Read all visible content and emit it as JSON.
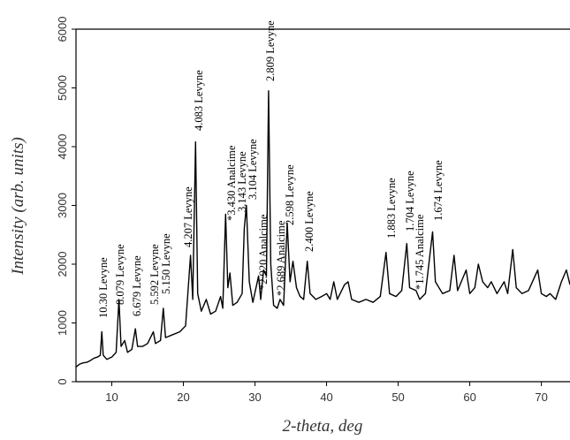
{
  "chart_data": {
    "type": "line",
    "xlabel": "2-theta, deg",
    "ylabel": "Intensity (arb. units)",
    "x": [
      5,
      5.5,
      6,
      6.5,
      7,
      7.5,
      8,
      8.4,
      8.6,
      8.8,
      9.3,
      10,
      10.6,
      11,
      11.3,
      11.8,
      12.2,
      12.8,
      13.3,
      13.6,
      14.3,
      15,
      15.8,
      16.1,
      16.8,
      17.2,
      17.5,
      18.5,
      19.5,
      20.3,
      21,
      21.3,
      21.7,
      22,
      22.5,
      23.2,
      23.8,
      24.5,
      25.2,
      25.5,
      25.9,
      26.2,
      26.5,
      26.9,
      27.5,
      28.2,
      28.5,
      28.8,
      29.2,
      29.7,
      30.5,
      30.8,
      31.2,
      31.6,
      31.9,
      32.2,
      32.6,
      33.1,
      33.5,
      34,
      34.5,
      34.9,
      35.3,
      35.8,
      36.3,
      36.8,
      37.3,
      37.7,
      38.5,
      39.3,
      40,
      40.5,
      41,
      41.5,
      42.5,
      43,
      43.5,
      44.5,
      45.5,
      46.5,
      47.5,
      48.3,
      48.8,
      49.7,
      50.5,
      51.2,
      51.6,
      52.5,
      53,
      53.8,
      54.8,
      55.2,
      56.2,
      57.2,
      57.8,
      58.3,
      59.5,
      60,
      60.7,
      61.2,
      61.8,
      62.5,
      63,
      63.8,
      64.8,
      65.3,
      66,
      66.5,
      67.3,
      68.2,
      69.5,
      70,
      70.7,
      71.2,
      72,
      72.8,
      73.5,
      74
    ],
    "values": [
      250,
      300,
      320,
      330,
      360,
      400,
      420,
      450,
      850,
      450,
      380,
      420,
      500,
      1400,
      600,
      700,
      500,
      550,
      900,
      600,
      600,
      650,
      850,
      650,
      700,
      1250,
      750,
      800,
      850,
      950,
      2150,
      1400,
      4080,
      1500,
      1200,
      1400,
      1150,
      1200,
      1450,
      1250,
      2850,
      1600,
      1850,
      1300,
      1350,
      1500,
      2600,
      3000,
      1700,
      1350,
      1800,
      1400,
      1900,
      1800,
      4950,
      2000,
      1300,
      1250,
      1400,
      1300,
      2700,
      1700,
      2050,
      1600,
      1450,
      1400,
      2050,
      1500,
      1400,
      1450,
      1500,
      1400,
      1700,
      1400,
      1650,
      1700,
      1400,
      1350,
      1400,
      1350,
      1450,
      2200,
      1500,
      1450,
      1550,
      2350,
      1600,
      1550,
      1400,
      1500,
      2550,
      1700,
      1500,
      1550,
      2150,
      1550,
      1900,
      1500,
      1600,
      2000,
      1700,
      1600,
      1700,
      1500,
      1700,
      1500,
      2250,
      1600,
      1500,
      1550,
      1900,
      1500,
      1450,
      1500,
      1400,
      1700,
      1900,
      1650
    ],
    "color": "#000000",
    "xlim": [
      5,
      74
    ],
    "ylim": [
      0,
      6000
    ],
    "xticks": [
      10,
      20,
      30,
      40,
      50,
      60,
      70
    ],
    "yticks": [
      0,
      1000,
      2000,
      3000,
      4000,
      5000,
      6000
    ],
    "annotations": [
      "10.30 Levyne",
      "8.079 Levyne",
      "6.679 Levyne",
      "5.592 Levyne",
      "5.150 Levyne",
      "4.207 Levyne",
      "4.083 Levyne",
      "*3.430 Analcime",
      "3.143 Levyne",
      "3.104 Levyne",
      "*2.920 Analcime",
      "2.809 Levyne",
      "*2.689 Analcime",
      "2.598 Levyne",
      "2.400 Levyne",
      "1.883 Levyne",
      "1.704 Levyne",
      "*1.745 Analcime",
      "1.674 Levyne"
    ]
  }
}
